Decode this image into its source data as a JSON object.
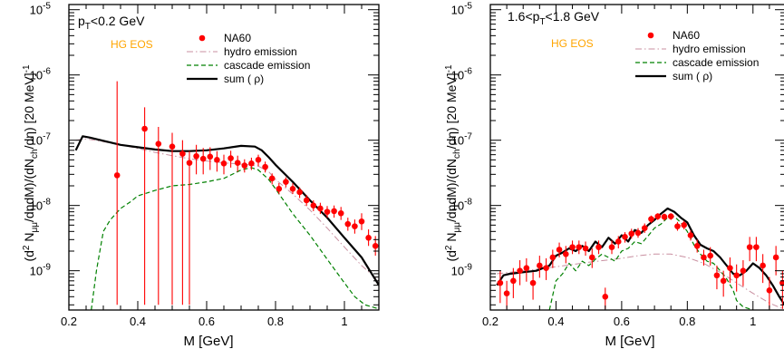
{
  "chart_data": [
    {
      "type": "line",
      "panel_label": "p_T<0.2 GeV",
      "panel_label_parts": {
        "pre": "p",
        "sub": "T",
        "post": "<0.2 GeV"
      },
      "annotation": "HG EOS",
      "xlabel": "M [GeV]",
      "ylabel": "(d² N_μμ/dηdM)/(dN_ch/dη) [20 MeV]⁻¹",
      "xlim": [
        0.2,
        1.1
      ],
      "ylim": [
        2.5e-10,
        1.2e-05
      ],
      "yscale": "log",
      "x_ticks": [
        "0.2",
        "0.4",
        "0.6",
        "0.8",
        "1"
      ],
      "y_ticks": [
        "10^-9",
        "10^-8",
        "10^-7",
        "10^-6",
        "10^-5"
      ],
      "legend": [
        "NA60",
        "hydro emission",
        "cascade emission",
        "sum ( ρ)"
      ],
      "legend_position": "top-right",
      "colors": {
        "data": "#ff0000",
        "hydro": "#c98fa0",
        "cascade": "#008000",
        "sum": "#000000",
        "annotation": "#ffa500"
      },
      "series": [
        {
          "name": "NA60",
          "style": "points",
          "x": [
            0.34,
            0.42,
            0.46,
            0.5,
            0.53,
            0.55,
            0.57,
            0.59,
            0.61,
            0.63,
            0.65,
            0.67,
            0.69,
            0.71,
            0.73,
            0.75,
            0.77,
            0.79,
            0.81,
            0.83,
            0.85,
            0.87,
            0.89,
            0.91,
            0.93,
            0.95,
            0.97,
            0.99,
            1.01,
            1.03,
            1.05,
            1.07,
            1.09
          ],
          "y": [
            2.9e-08,
            1.5e-07,
            8.8e-08,
            8e-08,
            6.2e-08,
            4.5e-08,
            5.7e-08,
            5.2e-08,
            5.6e-08,
            5e-08,
            4.4e-08,
            5.3e-08,
            4.5e-08,
            4.1e-08,
            4.4e-08,
            5e-08,
            3.9e-08,
            2.6e-08,
            1.8e-08,
            2.3e-08,
            1.8e-08,
            1.6e-08,
            1.2e-08,
            1e-08,
            9e-09,
            8e-09,
            8.2e-09,
            7.6e-09,
            5.2e-09,
            4.8e-09,
            5.7e-09,
            3.2e-09,
            2.4e-09
          ],
          "ylo": [
            3e-10,
            3e-10,
            3e-10,
            3e-10,
            3e-10,
            3e-10,
            3e-08,
            3e-08,
            3.5e-08,
            3.3e-08,
            3e-08,
            3.8e-08,
            3.3e-08,
            3.2e-08,
            3.5e-08,
            4e-08,
            3.2e-08,
            2.1e-08,
            1.5e-08,
            1.9e-08,
            1.5e-08,
            1.3e-08,
            9.8e-09,
            8.2e-09,
            7.4e-09,
            6.5e-09,
            6.5e-09,
            6e-09,
            4.1e-09,
            3.7e-09,
            4.2e-09,
            2.4e-09,
            1.7e-09
          ],
          "yhi": [
            8e-07,
            3.2e-07,
            1.6e-07,
            1.3e-07,
            1e-07,
            6.8e-08,
            8.5e-08,
            7.6e-08,
            7.8e-08,
            6.8e-08,
            6e-08,
            6.9e-08,
            5.8e-08,
            5.1e-08,
            5.4e-08,
            6e-08,
            4.7e-08,
            3.1e-08,
            2.2e-08,
            2.7e-08,
            2.2e-08,
            1.9e-08,
            1.45e-08,
            1.2e-08,
            1.1e-08,
            9.8e-09,
            1e-08,
            9.5e-09,
            6.5e-09,
            6.1e-09,
            7.6e-09,
            4.3e-09,
            3.4e-09
          ]
        },
        {
          "name": "hydro emission",
          "style": "dashdot",
          "x": [
            0.22,
            0.25,
            0.3,
            0.35,
            0.4,
            0.45,
            0.5,
            0.55,
            0.6,
            0.65,
            0.7,
            0.72,
            0.75,
            0.78,
            0.8,
            0.85,
            0.9,
            0.95,
            1.0,
            1.05,
            1.1
          ],
          "y": [
            1e-07,
            1.05e-07,
            9.5e-08,
            8.5e-08,
            7.5e-08,
            6.5e-08,
            5.8e-08,
            5.2e-08,
            4.8e-08,
            4.5e-08,
            4.3e-08,
            4.2e-08,
            4e-08,
            3.3e-08,
            2.5e-08,
            1.5e-08,
            8.5e-09,
            4.5e-09,
            2.3e-09,
            1.2e-09,
            7e-10
          ]
        },
        {
          "name": "cascade emission",
          "style": "dashed",
          "x": [
            0.265,
            0.28,
            0.3,
            0.32,
            0.35,
            0.38,
            0.4,
            0.45,
            0.5,
            0.55,
            0.6,
            0.65,
            0.7,
            0.73,
            0.75,
            0.78,
            0.8,
            0.85,
            0.9,
            0.95,
            1.0,
            1.03,
            1.06,
            1.08,
            1.1
          ],
          "y": [
            2.5e-10,
            1e-09,
            4e-09,
            6e-09,
            9e-09,
            1.15e-08,
            1.4e-08,
            1.7e-08,
            2e-08,
            2.1e-08,
            2.3e-08,
            2.6e-08,
            3.5e-08,
            3.8e-08,
            3.5e-08,
            2.5e-08,
            1.8e-08,
            7.5e-09,
            3.5e-09,
            1.5e-09,
            6.5e-10,
            4e-10,
            3e-10,
            2.8e-10,
            2.6e-10
          ]
        },
        {
          "name": "sum ( ρ)",
          "style": "solid",
          "x": [
            0.22,
            0.24,
            0.26,
            0.3,
            0.35,
            0.4,
            0.45,
            0.5,
            0.55,
            0.6,
            0.65,
            0.7,
            0.74,
            0.76,
            0.78,
            0.8,
            0.85,
            0.9,
            0.95,
            1.0,
            1.05,
            1.1
          ],
          "y": [
            7e-08,
            1.15e-07,
            1.1e-07,
            9.8e-08,
            8.5e-08,
            7.8e-08,
            7.2e-08,
            6.8e-08,
            6.8e-08,
            7e-08,
            7.5e-08,
            8.2e-08,
            8e-08,
            7e-08,
            5.5e-08,
            4.2e-08,
            2.3e-08,
            1.2e-08,
            6.5e-09,
            3.2e-09,
            1.6e-09,
            6e-10
          ]
        }
      ]
    },
    {
      "type": "line",
      "panel_label": "1.6<p_T<1.8 GeV",
      "panel_label_parts": {
        "pre": "1.6<p",
        "sub": "T",
        "post": "<1.8 GeV"
      },
      "annotation": "HG EOS",
      "xlabel": "M [GeV]",
      "ylabel": "(d² N_μμ/dηdM)/(dN_ch/dη) [20 MeV]⁻¹",
      "xlim": [
        0.2,
        1.1
      ],
      "ylim": [
        2.5e-10,
        1.2e-05
      ],
      "yscale": "log",
      "x_ticks": [
        "0.2",
        "0.4",
        "0.6",
        "0.8",
        "1"
      ],
      "y_ticks": [
        "10^-9",
        "10^-8",
        "10^-7",
        "10^-6",
        "10^-5"
      ],
      "legend": [
        "NA60",
        "hydro emission",
        "cascade emission",
        "sum ( ρ)"
      ],
      "legend_position": "top-right",
      "colors": {
        "data": "#ff0000",
        "hydro": "#c98fa0",
        "cascade": "#008000",
        "sum": "#000000",
        "annotation": "#ffa500"
      },
      "series": [
        {
          "name": "NA60",
          "style": "points",
          "x": [
            0.23,
            0.25,
            0.27,
            0.29,
            0.31,
            0.33,
            0.35,
            0.37,
            0.39,
            0.41,
            0.43,
            0.45,
            0.47,
            0.49,
            0.51,
            0.53,
            0.55,
            0.57,
            0.59,
            0.61,
            0.63,
            0.65,
            0.67,
            0.69,
            0.71,
            0.73,
            0.75,
            0.77,
            0.79,
            0.81,
            0.83,
            0.85,
            0.87,
            0.89,
            0.91,
            0.93,
            0.95,
            0.97,
            0.99,
            1.01,
            1.03,
            1.05,
            1.07,
            1.09
          ],
          "y": [
            6.5e-10,
            4.5e-10,
            7e-10,
            1e-09,
            1.1e-09,
            6.5e-10,
            1.2e-09,
            1.1e-09,
            1.6e-09,
            2.1e-09,
            1.8e-09,
            2.3e-09,
            2.3e-09,
            2.2e-09,
            1.6e-09,
            2.3e-09,
            4e-10,
            2.3e-09,
            2.8e-09,
            3.3e-09,
            3.7e-09,
            3.8e-09,
            4.5e-09,
            6.2e-09,
            6.8e-09,
            6.7e-09,
            6.8e-09,
            4.8e-09,
            5e-09,
            3.5e-09,
            2.4e-09,
            1.6e-09,
            1.7e-09,
            8.5e-10,
            7e-10,
            1.1e-09,
            8.5e-10,
            1e-09,
            2.3e-09,
            2.3e-09,
            1.2e-09,
            5e-10,
            1.6e-09,
            6.5e-10
          ],
          "ylo": [
            3.2e-10,
            2.6e-10,
            3.8e-10,
            6e-10,
            6.8e-10,
            3.6e-10,
            7.8e-10,
            7.2e-10,
            1.1e-09,
            1.6e-09,
            1.3e-09,
            1.8e-09,
            1.8e-09,
            1.7e-09,
            1.1e-09,
            1.8e-09,
            2.6e-10,
            1.8e-09,
            2.2e-09,
            2.7e-09,
            3.1e-09,
            3.2e-09,
            3.8e-09,
            5.4e-09,
            6e-09,
            5.9e-09,
            6e-09,
            4.1e-09,
            4.3e-09,
            2.9e-09,
            1.9e-09,
            1.2e-09,
            1.2e-09,
            5.2e-10,
            4e-10,
            6.5e-10,
            4.8e-10,
            5.8e-10,
            1.4e-09,
            1.4e-09,
            6.5e-10,
            2.6e-10,
            8.5e-10,
            2.6e-10
          ],
          "yhi": [
            1e-09,
            7e-10,
            1.1e-09,
            1.45e-09,
            1.55e-09,
            9.5e-10,
            1.7e-09,
            1.55e-09,
            2.1e-09,
            2.7e-09,
            2.4e-09,
            2.9e-09,
            2.9e-09,
            2.8e-09,
            2.2e-09,
            2.9e-09,
            5.5e-10,
            2.9e-09,
            3.4e-09,
            3.9e-09,
            4.4e-09,
            4.5e-09,
            5.3e-09,
            7e-09,
            7.6e-09,
            7.5e-09,
            7.6e-09,
            5.6e-09,
            5.8e-09,
            4.2e-09,
            3e-09,
            2.1e-09,
            2.3e-09,
            1.2e-09,
            1e-09,
            1.6e-09,
            1.25e-09,
            1.45e-09,
            3.3e-09,
            3.3e-09,
            1.8e-09,
            8e-10,
            2.4e-09,
            1e-09
          ]
        },
        {
          "name": "hydro emission",
          "style": "dashdot",
          "x": [
            0.22,
            0.3,
            0.4,
            0.5,
            0.6,
            0.65,
            0.7,
            0.75,
            0.8,
            0.85,
            0.9,
            0.95,
            1.0,
            1.05,
            1.1
          ],
          "y": [
            9e-10,
            1e-09,
            1.15e-09,
            1.35e-09,
            1.55e-09,
            1.7e-09,
            1.8e-09,
            1.8e-09,
            1.6e-09,
            1.3e-09,
            9.5e-10,
            6.5e-10,
            4.5e-10,
            3.2e-10,
            2.5e-10
          ]
        },
        {
          "name": "cascade emission",
          "style": "dashed",
          "x": [
            0.38,
            0.4,
            0.42,
            0.44,
            0.46,
            0.48,
            0.5,
            0.52,
            0.54,
            0.56,
            0.58,
            0.6,
            0.62,
            0.64,
            0.66,
            0.68,
            0.7,
            0.72,
            0.74,
            0.76,
            0.78,
            0.8,
            0.82,
            0.84,
            0.86,
            0.88,
            0.9,
            0.92,
            0.94,
            0.95,
            0.97,
            1.0
          ],
          "y": [
            2.5e-10,
            7e-10,
            9e-10,
            1.3e-09,
            1e-09,
            1.4e-09,
            1.2e-09,
            1.5e-09,
            1.8e-09,
            1.6e-09,
            1.4e-09,
            2e-09,
            2.2e-09,
            2.8e-09,
            2.6e-09,
            3.4e-09,
            4.5e-09,
            5.2e-09,
            6.5e-09,
            6.8e-09,
            5.5e-09,
            4e-09,
            2.5e-09,
            1.8e-09,
            1.4e-09,
            1.3e-09,
            1e-09,
            7.5e-10,
            5e-10,
            3.5e-10,
            2.8e-10,
            2.5e-10
          ]
        },
        {
          "name": "sum ( ρ)",
          "style": "solid",
          "x": [
            0.22,
            0.24,
            0.26,
            0.3,
            0.34,
            0.38,
            0.4,
            0.42,
            0.44,
            0.46,
            0.48,
            0.5,
            0.52,
            0.54,
            0.56,
            0.58,
            0.6,
            0.62,
            0.64,
            0.66,
            0.68,
            0.7,
            0.72,
            0.74,
            0.76,
            0.78,
            0.8,
            0.82,
            0.84,
            0.86,
            0.88,
            0.9,
            0.92,
            0.94,
            0.96,
            0.98,
            1.0,
            1.02,
            1.04,
            1.06,
            1.08,
            1.1
          ],
          "y": [
            6e-10,
            8.5e-10,
            9e-10,
            9.5e-10,
            1e-09,
            1.2e-09,
            1.7e-09,
            1.9e-09,
            2.2e-09,
            2e-09,
            2.4e-09,
            2e-09,
            2.8e-09,
            2.3e-09,
            3.2e-09,
            2.6e-09,
            3.5e-09,
            2.8e-09,
            4.2e-09,
            3.8e-09,
            5e-09,
            6e-09,
            7.5e-09,
            9e-09,
            8e-09,
            6.5e-09,
            5.5e-09,
            3.5e-09,
            2.5e-09,
            2.2e-09,
            2e-09,
            1.6e-09,
            1.2e-09,
            9e-10,
            8.5e-10,
            1e-09,
            1.3e-09,
            1.1e-09,
            8.5e-10,
            6e-10,
            4e-10,
            2.8e-10
          ]
        }
      ]
    }
  ]
}
